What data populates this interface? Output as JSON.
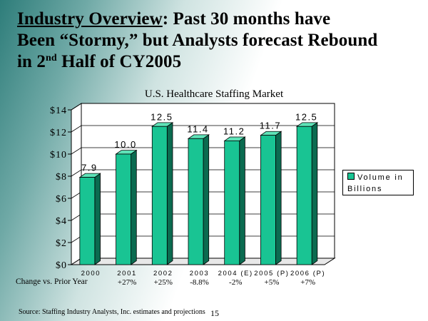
{
  "slide": {
    "title_underlined": "Industry Overview",
    "title_rest_1": ":  Past 30 months have",
    "title_line_2": "Been “Stormy,” but Analysts forecast Rebound",
    "title_line_3_pre": "in 2",
    "title_line_3_sup": "nd",
    "title_line_3_post": " Half of CY2005",
    "change_label": "Change vs. Prior Year",
    "source": "Source: Staffing Industry Analysts, Inc. estimates and projections",
    "page_number": "15"
  },
  "colors": {
    "bar_front": "#19c493",
    "bar_side": "#0b6b50",
    "bar_top": "#5fe3b8",
    "teal_gradient": "#2e7d7a"
  },
  "chart_data": {
    "type": "bar",
    "title": "U.S. Healthcare Staffing Market",
    "categories": [
      "2000",
      "2001",
      "2002",
      "2003",
      "2004 (E)",
      "2005 (P)",
      "2006 (P)"
    ],
    "series": [
      {
        "name": "Volume in Billions",
        "values": [
          7.9,
          10.0,
          12.5,
          11.4,
          11.2,
          11.7,
          12.5
        ]
      }
    ],
    "data_labels": [
      "7.9",
      "10.0",
      "12.5",
      "11.4",
      "11.2",
      "11.7",
      "12.5"
    ],
    "change_vs_prior_year": [
      "",
      "+27%",
      "+25%",
      "-8.8%",
      "-2%",
      "+5%",
      "+7%"
    ],
    "yticks": [
      "$0",
      "$2",
      "$4",
      "$6",
      "$8",
      "$10",
      "$12",
      "$14"
    ],
    "ylim": [
      0,
      14
    ],
    "legend": {
      "label": "Volume in Billions",
      "position": "right"
    }
  }
}
